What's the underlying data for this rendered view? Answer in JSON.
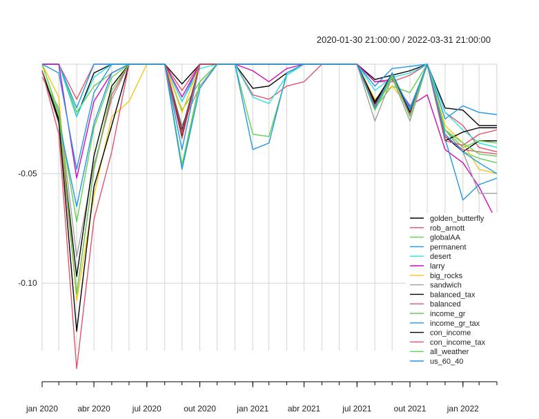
{
  "chart_data": {
    "type": "line",
    "title": "",
    "date_range_label": "2020-01-30 21:00:00 / 2022-03-31 21:00:00",
    "xlabel": "",
    "ylabel": "",
    "ylim": [
      -0.145,
      0.0
    ],
    "xlim": [
      "2020-01-31",
      "2022-03-31"
    ],
    "y_ticks": [
      {
        "value": -0.05,
        "label": "-0.05"
      },
      {
        "value": -0.1,
        "label": "-0.10"
      }
    ],
    "x_ticks": [
      {
        "date": "2020-01-31",
        "label": "jan 2020"
      },
      {
        "date": "2020-04-30",
        "label": "abr 2020"
      },
      {
        "date": "2020-07-31",
        "label": "jul 2020"
      },
      {
        "date": "2020-10-31",
        "label": "out 2020"
      },
      {
        "date": "2021-01-31",
        "label": "jan 2021"
      },
      {
        "date": "2021-04-30",
        "label": "abr 2021"
      },
      {
        "date": "2021-07-31",
        "label": "jul 2021"
      },
      {
        "date": "2021-10-31",
        "label": "out 2021"
      },
      {
        "date": "2022-01-31",
        "label": "jan 2022"
      }
    ],
    "grid": true,
    "legend_position": "bottom-right",
    "x": [
      "2020-01-31",
      "2020-02-29",
      "2020-03-31",
      "2020-04-30",
      "2020-05-31",
      "2020-06-30",
      "2020-07-31",
      "2020-08-31",
      "2020-09-30",
      "2020-10-31",
      "2020-11-30",
      "2020-12-31",
      "2021-01-31",
      "2021-02-28",
      "2021-03-31",
      "2021-04-30",
      "2021-05-31",
      "2021-06-30",
      "2021-07-31",
      "2021-08-31",
      "2021-09-30",
      "2021-10-31",
      "2021-11-30",
      "2021-12-31",
      "2022-01-31",
      "2022-02-28",
      "2022-03-31"
    ],
    "series": [
      {
        "name": "golden_butterfly",
        "color": "#000000",
        "values": [
          0,
          0,
          -0.024,
          -0.004,
          0,
          0,
          0,
          0,
          -0.009,
          0,
          0,
          0,
          -0.011,
          -0.01,
          -0.004,
          0,
          0,
          0,
          0,
          -0.007,
          -0.005,
          -0.003,
          0,
          -0.02,
          -0.021,
          -0.028,
          -0.028
        ]
      },
      {
        "name": "rob_arnott",
        "color": "#DF536B",
        "values": [
          0,
          0,
          -0.016,
          0,
          0,
          0,
          0,
          0,
          -0.012,
          0,
          0,
          0,
          -0.014,
          -0.016,
          -0.01,
          -0.008,
          0,
          0,
          0,
          -0.008,
          -0.008,
          -0.005,
          0,
          -0.022,
          -0.028,
          -0.038,
          -0.04
        ]
      },
      {
        "name": "globalAA",
        "color": "#61D04F",
        "values": [
          0,
          0,
          -0.022,
          -0.01,
          -0.004,
          0,
          0,
          0,
          -0.021,
          -0.008,
          0,
          0,
          -0.032,
          -0.033,
          -0.005,
          0,
          0,
          0,
          0,
          -0.02,
          -0.01,
          -0.013,
          0,
          -0.032,
          -0.04,
          -0.043,
          -0.045
        ]
      },
      {
        "name": "permanent",
        "color": "#2297E6",
        "values": [
          0,
          0,
          -0.02,
          0,
          0,
          0,
          0,
          0,
          -0.017,
          0,
          0,
          0,
          -0.039,
          -0.036,
          -0.004,
          0,
          0,
          0,
          0,
          -0.01,
          -0.002,
          -0.001,
          0,
          -0.025,
          -0.019,
          -0.022,
          -0.023
        ]
      },
      {
        "name": "desert",
        "color": "#28E2E5",
        "values": [
          0,
          0,
          -0.024,
          -0.006,
          0,
          0,
          0,
          0,
          -0.017,
          -0.002,
          0,
          0,
          -0.015,
          -0.018,
          -0.005,
          0,
          0,
          0,
          0,
          -0.012,
          -0.006,
          -0.004,
          0,
          -0.022,
          -0.03,
          -0.036,
          -0.038
        ]
      },
      {
        "name": "larry",
        "color": "#CD0BBC",
        "values": [
          0,
          0,
          -0.052,
          -0.017,
          -0.004,
          0,
          0,
          0,
          -0.015,
          0,
          0,
          0,
          -0.003,
          -0.008,
          -0.002,
          0,
          0,
          0,
          0,
          -0.008,
          -0.007,
          -0.019,
          -0.014,
          -0.039,
          -0.045,
          -0.056,
          -0.072
        ]
      },
      {
        "name": "big_rocks",
        "color": "#F5C710",
        "values": [
          0,
          -0.015,
          -0.108,
          -0.06,
          -0.024,
          -0.017,
          0,
          0,
          -0.022,
          0,
          0,
          0,
          0,
          0,
          0,
          0,
          0,
          0,
          0,
          -0.016,
          -0.01,
          -0.02,
          0,
          -0.028,
          -0.036,
          -0.048,
          -0.05
        ]
      },
      {
        "name": "sandwich",
        "color": "#9E9E9E",
        "values": [
          -0.006,
          -0.02,
          -0.088,
          -0.046,
          -0.016,
          0,
          0,
          0,
          -0.028,
          -0.01,
          0,
          0,
          0,
          0,
          0,
          0,
          0,
          0,
          0,
          -0.026,
          -0.006,
          -0.026,
          0,
          -0.03,
          -0.04,
          -0.059,
          -0.059
        ]
      },
      {
        "name": "balanced_tax",
        "color": "#000000",
        "values": [
          -0.003,
          -0.025,
          -0.097,
          -0.042,
          -0.01,
          0,
          0,
          0,
          -0.03,
          0,
          0,
          0,
          0,
          0,
          0,
          0,
          0,
          0,
          0,
          -0.017,
          -0.005,
          -0.021,
          0,
          -0.033,
          -0.04,
          -0.035,
          -0.035
        ]
      },
      {
        "name": "balanced",
        "color": "#DF536B",
        "values": [
          -0.003,
          -0.027,
          -0.105,
          -0.048,
          -0.014,
          0,
          0,
          0,
          -0.031,
          0,
          0,
          0,
          0,
          0,
          0,
          0,
          0,
          0,
          0,
          -0.018,
          -0.006,
          -0.022,
          0,
          -0.033,
          -0.039,
          -0.04,
          -0.041
        ]
      },
      {
        "name": "income_gr",
        "color": "#61D04F",
        "values": [
          -0.003,
          -0.023,
          -0.072,
          -0.029,
          -0.006,
          0,
          0,
          0,
          -0.046,
          -0.008,
          0,
          0,
          0,
          0,
          0,
          0,
          0,
          0,
          0,
          -0.021,
          -0.006,
          -0.022,
          0,
          -0.03,
          -0.038,
          -0.035,
          -0.036
        ]
      },
      {
        "name": "income_gr_tax",
        "color": "#2297E6",
        "values": [
          -0.003,
          -0.026,
          -0.065,
          -0.027,
          -0.004,
          0,
          0,
          0,
          -0.039,
          0,
          0,
          0,
          0,
          0,
          0,
          0,
          0,
          0,
          0,
          -0.019,
          -0.005,
          -0.02,
          0,
          -0.034,
          -0.062,
          -0.055,
          -0.052
        ]
      },
      {
        "name": "con_income",
        "color": "#000000",
        "values": [
          -0.003,
          -0.026,
          -0.122,
          -0.056,
          -0.028,
          0,
          0,
          0,
          -0.033,
          0,
          0,
          0,
          0,
          0,
          0,
          0,
          0,
          0,
          0,
          -0.018,
          -0.004,
          -0.022,
          0,
          -0.035,
          -0.031,
          -0.029,
          -0.029
        ]
      },
      {
        "name": "con_income_tax",
        "color": "#DF536B",
        "values": [
          -0.003,
          -0.032,
          -0.139,
          -0.071,
          -0.04,
          0,
          0,
          0,
          -0.034,
          0,
          0,
          0,
          0,
          0,
          0,
          0,
          0,
          0,
          0,
          -0.019,
          -0.005,
          -0.023,
          0,
          -0.035,
          -0.037,
          -0.032,
          -0.03
        ]
      },
      {
        "name": "all_weather",
        "color": "#61D04F",
        "values": [
          0,
          -0.022,
          -0.105,
          -0.048,
          -0.012,
          0,
          0,
          0,
          -0.047,
          -0.008,
          0,
          0,
          0,
          0,
          0,
          0,
          0,
          0,
          0,
          -0.021,
          -0.005,
          -0.024,
          0,
          -0.03,
          -0.036,
          -0.041,
          -0.042
        ]
      },
      {
        "name": "us_60_40",
        "color": "#2297E6",
        "values": [
          0,
          -0.004,
          -0.048,
          -0.013,
          0,
          0,
          0,
          0,
          -0.048,
          -0.011,
          0,
          0,
          0,
          0,
          0,
          0,
          0,
          0,
          0,
          -0.02,
          -0.004,
          -0.021,
          0,
          -0.032,
          -0.04,
          -0.045,
          -0.05
        ]
      }
    ]
  }
}
